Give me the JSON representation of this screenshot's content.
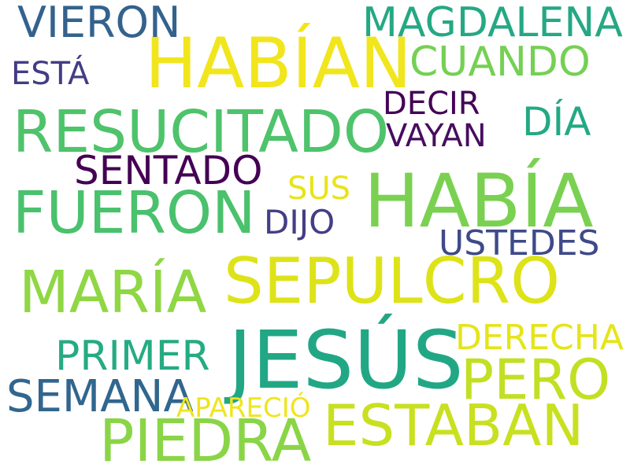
{
  "cloud": {
    "words": {
      "habian": {
        "text": "HABÍAN",
        "color": "#f1e51d"
      },
      "resucitado": {
        "text": "RESUCITADO",
        "color": "#4ec36b"
      },
      "fueron": {
        "text": "FUERON",
        "color": "#4ac16d"
      },
      "habia": {
        "text": "HABÍA",
        "color": "#7ad151"
      },
      "sepulcro": {
        "text": "SEPULCRO",
        "color": "#dde318"
      },
      "jesus": {
        "text": "JESÚS",
        "color": "#22a785"
      },
      "maria": {
        "text": "MARÍA",
        "color": "#8fd744"
      },
      "piedra": {
        "text": "PIEDRA",
        "color": "#8ad547"
      },
      "estaban": {
        "text": "ESTABAN",
        "color": "#c8e020"
      },
      "pero": {
        "text": "PERO",
        "color": "#c2df23"
      },
      "magdalena": {
        "text": "MAGDALENA",
        "color": "#25a884"
      },
      "vieron": {
        "text": "VIERON",
        "color": "#33628d"
      },
      "cuando": {
        "text": "CUANDO",
        "color": "#75d054"
      },
      "semana": {
        "text": "SEMANA",
        "color": "#31668e"
      },
      "primer": {
        "text": "PRIMER",
        "color": "#25ab82"
      },
      "sentado": {
        "text": "SENTADO",
        "color": "#440154"
      },
      "dia": {
        "text": "DÍA",
        "color": "#23a983"
      },
      "vayan": {
        "text": "VAYAN",
        "color": "#470d60"
      },
      "decir": {
        "text": "DECIR",
        "color": "#440256"
      },
      "usted": {
        "text": "USTEDES",
        "color": "#3e4a89"
      },
      "derecha": {
        "text": "DERECHA",
        "color": "#e5e419"
      },
      "dijo": {
        "text": "DIJO",
        "color": "#433e85"
      },
      "sus": {
        "text": "SUS",
        "color": "#e7e419"
      },
      "esta": {
        "text": "ESTÁ",
        "color": "#433d84"
      },
      "aparecio": {
        "text": "APARECIÓ",
        "color": "#efe51c"
      }
    }
  }
}
